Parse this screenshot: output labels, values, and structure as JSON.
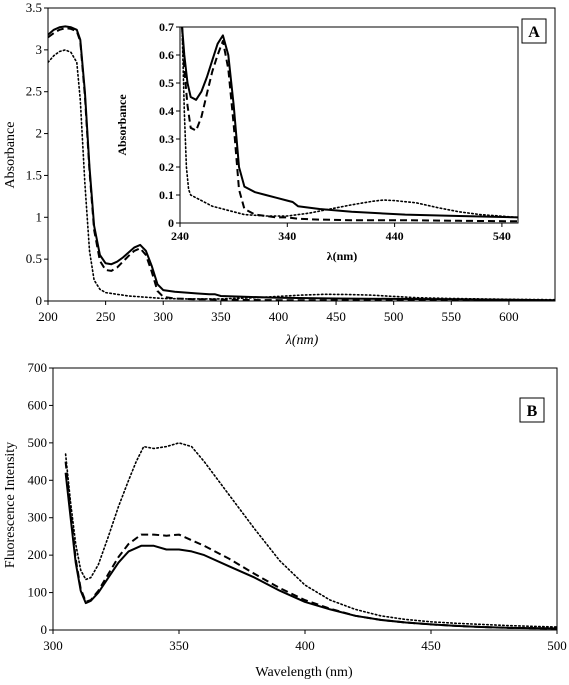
{
  "chart_data": [
    {
      "id": "A",
      "type": "line",
      "panel_label": "A",
      "xlabel": "λ(nm)",
      "ylabel": "Absorbance",
      "xlim": [
        200,
        640
      ],
      "ylim": [
        0,
        3.5
      ],
      "xticks": [
        200,
        250,
        300,
        350,
        400,
        450,
        500,
        550,
        600
      ],
      "yticks": [
        0,
        0.5,
        1,
        1.5,
        2,
        2.5,
        3,
        3.5
      ],
      "ytick_labels": [
        "0",
        "0.5",
        "1",
        "1.5",
        "2",
        "2.5",
        "3",
        "3.5"
      ],
      "series": [
        {
          "style": "solid",
          "x": [
            200,
            205,
            210,
            215,
            220,
            225,
            228,
            232,
            236,
            240,
            245,
            250,
            255,
            260,
            265,
            270,
            275,
            280,
            285,
            290,
            295,
            300,
            310,
            320,
            330,
            340,
            345,
            350,
            370,
            400,
            450,
            500,
            550,
            600,
            640
          ],
          "y": [
            3.18,
            3.24,
            3.27,
            3.28,
            3.27,
            3.24,
            3.12,
            2.5,
            1.6,
            0.9,
            0.55,
            0.45,
            0.44,
            0.47,
            0.52,
            0.58,
            0.64,
            0.67,
            0.6,
            0.42,
            0.2,
            0.13,
            0.11,
            0.1,
            0.09,
            0.08,
            0.08,
            0.06,
            0.05,
            0.04,
            0.03,
            0.025,
            0.02,
            0.015,
            0.01
          ]
        },
        {
          "style": "dashed",
          "x": [
            200,
            205,
            210,
            215,
            220,
            225,
            228,
            232,
            236,
            240,
            245,
            250,
            255,
            260,
            265,
            270,
            275,
            280,
            285,
            290,
            295,
            300,
            310,
            320,
            330,
            340,
            350,
            370,
            400,
            450,
            500,
            550,
            600,
            640
          ],
          "y": [
            3.15,
            3.2,
            3.24,
            3.26,
            3.25,
            3.22,
            3.1,
            2.45,
            1.55,
            0.85,
            0.48,
            0.37,
            0.36,
            0.4,
            0.47,
            0.54,
            0.6,
            0.63,
            0.55,
            0.35,
            0.12,
            0.05,
            0.03,
            0.025,
            0.02,
            0.02,
            0.015,
            0.012,
            0.01,
            0.01,
            0.008,
            0.006,
            0.005,
            0.005
          ]
        },
        {
          "style": "dotted",
          "x": [
            200,
            205,
            210,
            215,
            220,
            225,
            228,
            232,
            236,
            240,
            245,
            250,
            260,
            270,
            280,
            300,
            320,
            350,
            380,
            400,
            420,
            440,
            460,
            480,
            500,
            520,
            550,
            600,
            640
          ],
          "y": [
            2.85,
            2.93,
            2.98,
            3.0,
            2.97,
            2.85,
            2.4,
            1.4,
            0.6,
            0.25,
            0.14,
            0.1,
            0.08,
            0.06,
            0.05,
            0.03,
            0.025,
            0.025,
            0.04,
            0.055,
            0.07,
            0.08,
            0.078,
            0.07,
            0.055,
            0.04,
            0.03,
            0.02,
            0.015
          ]
        }
      ]
    },
    {
      "id": "A-inset",
      "type": "line",
      "xlabel": "λ(nm)",
      "ylabel": "Absorbance",
      "xlim": [
        240,
        555
      ],
      "ylim": [
        0,
        0.7
      ],
      "xticks": [
        240,
        340,
        440,
        540
      ],
      "yticks": [
        0,
        0.1,
        0.2,
        0.3,
        0.4,
        0.5,
        0.6,
        0.7
      ],
      "ytick_labels": [
        "0",
        "0.1",
        "0.2",
        "0.3",
        "0.4",
        "0.5",
        "0.6",
        "0.7"
      ],
      "series": [
        {
          "style": "solid",
          "x": [
            242,
            244,
            247,
            250,
            255,
            260,
            265,
            270,
            275,
            280,
            285,
            290,
            295,
            300,
            310,
            320,
            330,
            340,
            345,
            350,
            370,
            400,
            450,
            500,
            555
          ],
          "y": [
            0.7,
            0.6,
            0.5,
            0.45,
            0.44,
            0.47,
            0.52,
            0.58,
            0.64,
            0.67,
            0.6,
            0.42,
            0.2,
            0.13,
            0.11,
            0.1,
            0.09,
            0.08,
            0.075,
            0.06,
            0.05,
            0.04,
            0.03,
            0.025,
            0.02
          ]
        },
        {
          "style": "dashed",
          "x": [
            242,
            244,
            247,
            250,
            255,
            260,
            265,
            270,
            275,
            280,
            285,
            290,
            295,
            300,
            310,
            320,
            330,
            340,
            350,
            370,
            400,
            450,
            500,
            555
          ],
          "y": [
            0.7,
            0.55,
            0.42,
            0.34,
            0.33,
            0.38,
            0.46,
            0.54,
            0.6,
            0.65,
            0.55,
            0.35,
            0.12,
            0.05,
            0.03,
            0.025,
            0.02,
            0.02,
            0.015,
            0.012,
            0.01,
            0.01,
            0.008,
            0.006
          ]
        },
        {
          "style": "dotted",
          "x": [
            242,
            244,
            246,
            248,
            250,
            255,
            260,
            270,
            280,
            300,
            320,
            340,
            360,
            380,
            400,
            420,
            430,
            440,
            460,
            480,
            500,
            520,
            555
          ],
          "y": [
            0.7,
            0.4,
            0.2,
            0.12,
            0.1,
            0.09,
            0.08,
            0.06,
            0.05,
            0.03,
            0.025,
            0.025,
            0.035,
            0.05,
            0.065,
            0.078,
            0.082,
            0.08,
            0.072,
            0.055,
            0.04,
            0.03,
            0.02
          ]
        }
      ]
    },
    {
      "id": "B",
      "type": "line",
      "panel_label": "B",
      "xlabel": "Wavelength (nm)",
      "ylabel": "Fluorescence Intensity",
      "xlim": [
        300,
        500
      ],
      "ylim": [
        0,
        700
      ],
      "xticks": [
        300,
        350,
        400,
        450,
        500
      ],
      "yticks": [
        0,
        100,
        200,
        300,
        400,
        500,
        600,
        700
      ],
      "ytick_labels": [
        "0",
        "100",
        "200",
        "300",
        "400",
        "500",
        "600",
        "700"
      ],
      "series": [
        {
          "style": "solid",
          "x": [
            305,
            307,
            309,
            311,
            313,
            315,
            318,
            322,
            326,
            330,
            335,
            340,
            345,
            350,
            355,
            360,
            370,
            380,
            390,
            400,
            410,
            420,
            430,
            440,
            450,
            460,
            470,
            480,
            490,
            500
          ],
          "y": [
            420,
            300,
            180,
            105,
            72,
            78,
            100,
            140,
            180,
            210,
            225,
            225,
            215,
            215,
            210,
            200,
            170,
            140,
            105,
            75,
            55,
            38,
            27,
            20,
            15,
            11,
            8,
            6,
            5,
            4
          ]
        },
        {
          "style": "dashed",
          "x": [
            305,
            307,
            309,
            311,
            313,
            315,
            318,
            322,
            326,
            330,
            335,
            340,
            345,
            350,
            355,
            360,
            370,
            380,
            390,
            400,
            410,
            420,
            430,
            440,
            450,
            460,
            470,
            480,
            490,
            500
          ],
          "y": [
            450,
            320,
            190,
            110,
            75,
            80,
            105,
            150,
            195,
            230,
            255,
            255,
            252,
            255,
            240,
            225,
            190,
            150,
            112,
            80,
            57,
            38,
            27,
            20,
            15,
            11,
            8,
            6,
            5,
            4
          ]
        },
        {
          "style": "dotted",
          "x": [
            305,
            307,
            309,
            311,
            313,
            315,
            318,
            322,
            326,
            330,
            333,
            336,
            340,
            345,
            350,
            355,
            360,
            370,
            380,
            390,
            400,
            410,
            420,
            430,
            440,
            450,
            460,
            470,
            480,
            490,
            500
          ],
          "y": [
            470,
            340,
            230,
            160,
            135,
            140,
            175,
            250,
            330,
            400,
            450,
            490,
            485,
            490,
            500,
            490,
            450,
            360,
            270,
            185,
            120,
            80,
            55,
            38,
            28,
            22,
            18,
            15,
            12,
            10,
            8
          ]
        }
      ]
    }
  ]
}
